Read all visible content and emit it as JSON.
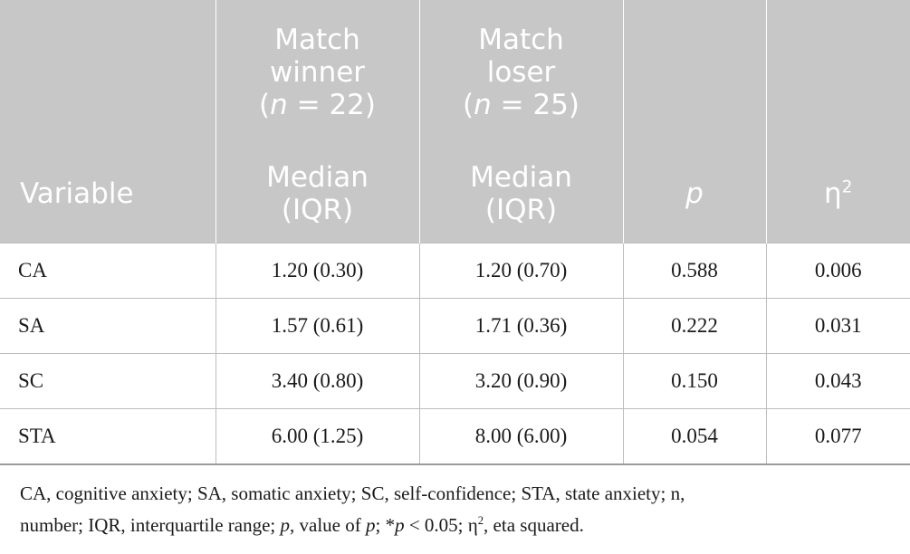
{
  "header": {
    "row1": {
      "col1": [
        "Match",
        "winner"
      ],
      "col1_n": [
        "(",
        "n",
        " = 22)"
      ],
      "col2": [
        "Match",
        "loser"
      ],
      "col2_n": [
        "(",
        "n",
        " = 25)"
      ]
    },
    "row2": {
      "variable": "Variable",
      "median_winner": [
        "Median",
        "(IQR)"
      ],
      "median_loser": [
        "Median",
        "(IQR)"
      ],
      "p": "p",
      "eta": "η",
      "eta_sup": "2"
    }
  },
  "rows": [
    {
      "variable": "CA",
      "winner": "1.20 (0.30)",
      "loser": "1.20 (0.70)",
      "p": "0.588",
      "eta": "0.006"
    },
    {
      "variable": "SA",
      "winner": "1.57 (0.61)",
      "loser": "1.71 (0.36)",
      "p": "0.222",
      "eta": "0.031"
    },
    {
      "variable": "SC",
      "winner": "3.40 (0.80)",
      "loser": "3.20 (0.90)",
      "p": "0.150",
      "eta": "0.043"
    },
    {
      "variable": "STA",
      "winner": "6.00 (1.25)",
      "loser": "8.00 (6.00)",
      "p": "0.054",
      "eta": "0.077"
    }
  ],
  "footnote": {
    "line1": "CA, cognitive anxiety; SA, somatic anxiety; SC, self-confidence; STA, state anxiety; n,",
    "line2_a": "number; IQR, interquartile range; ",
    "line2_p": "p",
    "line2_b": ", value of ",
    "line2_p2": "p",
    "line2_c": "; *",
    "line2_p3": "p",
    "line2_d": " < 0.05; η",
    "line2_sup": "2",
    "line2_e": ", eta squared."
  },
  "colors": {
    "header_bg": "#c7c7c7",
    "header_text": "#ffffff",
    "grid": "#bdbdbd"
  }
}
